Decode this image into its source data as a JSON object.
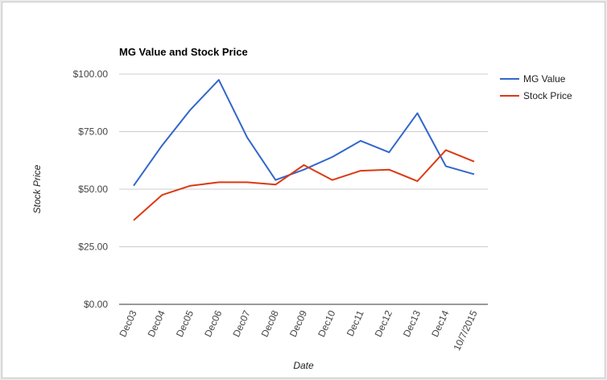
{
  "chart_data": {
    "type": "line",
    "title": "MG Value and Stock Price",
    "xlabel": "Date",
    "ylabel": "Stock Price",
    "categories": [
      "Dec03",
      "Dec04",
      "Dec05",
      "Dec06",
      "Dec07",
      "Dec08",
      "Dec09",
      "Dec10",
      "Dec11",
      "Dec12",
      "Dec13",
      "Dec14",
      "10/7/2015"
    ],
    "series": [
      {
        "name": "MG Value",
        "color": "#3366cc",
        "values": [
          51.5,
          69,
          84.5,
          97.5,
          72.5,
          54,
          58.5,
          64,
          71,
          66,
          83,
          60,
          56.5
        ]
      },
      {
        "name": "Stock Price",
        "color": "#dc3912",
        "values": [
          36.5,
          47.5,
          51.5,
          53,
          53,
          52,
          60.5,
          54,
          58,
          58.5,
          53.5,
          67,
          62
        ]
      }
    ],
    "ylim": [
      0,
      100
    ],
    "yticks": [
      {
        "value": 0,
        "label": "$0.00"
      },
      {
        "value": 25,
        "label": "$25.00"
      },
      {
        "value": 50,
        "label": "$50.00"
      },
      {
        "value": 75,
        "label": "$75.00"
      },
      {
        "value": 100,
        "label": "$100.00"
      }
    ],
    "grid": true,
    "legend_position": "right"
  }
}
